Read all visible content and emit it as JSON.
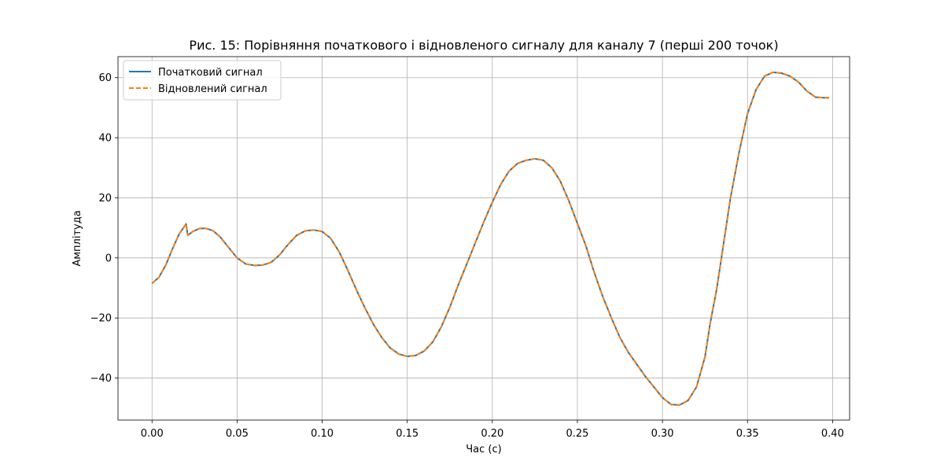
{
  "chart_data": {
    "type": "line",
    "title": "Рис. 15: Порівняння початкового і відновленого сигналу для каналу 7 (перші 200 точок)",
    "xlabel": "Час (с)",
    "ylabel": "Амплітуда",
    "xlim": [
      -0.02,
      0.41
    ],
    "ylim": [
      -54,
      67
    ],
    "xticks": [
      0.0,
      0.05,
      0.1,
      0.15,
      0.2,
      0.25,
      0.3,
      0.35,
      0.4
    ],
    "xtick_labels": [
      "0.00",
      "0.05",
      "0.10",
      "0.15",
      "0.20",
      "0.25",
      "0.30",
      "0.35",
      "0.40"
    ],
    "yticks": [
      -40,
      -20,
      0,
      20,
      40,
      60
    ],
    "ytick_labels": [
      "−40",
      "−20",
      "0",
      "20",
      "40",
      "60"
    ],
    "grid": true,
    "legend_position": "top-left",
    "x": [
      0.0,
      0.004,
      0.008,
      0.012,
      0.016,
      0.02,
      0.021,
      0.024,
      0.028,
      0.032,
      0.036,
      0.04,
      0.045,
      0.05,
      0.055,
      0.06,
      0.065,
      0.07,
      0.075,
      0.08,
      0.085,
      0.09,
      0.095,
      0.1,
      0.105,
      0.11,
      0.115,
      0.12,
      0.125,
      0.13,
      0.135,
      0.14,
      0.145,
      0.15,
      0.155,
      0.16,
      0.165,
      0.17,
      0.175,
      0.18,
      0.185,
      0.19,
      0.195,
      0.2,
      0.205,
      0.21,
      0.215,
      0.22,
      0.225,
      0.23,
      0.235,
      0.24,
      0.245,
      0.25,
      0.255,
      0.26,
      0.265,
      0.27,
      0.275,
      0.28,
      0.285,
      0.29,
      0.295,
      0.3,
      0.305,
      0.31,
      0.315,
      0.32,
      0.325,
      0.328,
      0.332,
      0.336,
      0.34,
      0.345,
      0.35,
      0.355,
      0.36,
      0.365,
      0.37,
      0.375,
      0.38,
      0.385,
      0.39,
      0.395,
      0.398
    ],
    "series": [
      {
        "name": "Початковий сигнал",
        "color": "#1f77b4",
        "dash": "solid",
        "values": [
          -8.5,
          -6.5,
          -2.5,
          3.0,
          8.0,
          11.3,
          7.5,
          8.8,
          9.8,
          9.8,
          9.0,
          7.0,
          3.5,
          0.0,
          -2.0,
          -2.5,
          -2.4,
          -1.5,
          1.0,
          4.5,
          7.5,
          9.0,
          9.3,
          8.8,
          6.5,
          2.0,
          -4.0,
          -10.5,
          -16.5,
          -22.0,
          -26.5,
          -30.0,
          -32.0,
          -32.8,
          -32.5,
          -31.0,
          -28.0,
          -23.0,
          -16.5,
          -9.0,
          -2.0,
          5.0,
          12.0,
          18.5,
          24.5,
          29.0,
          31.5,
          32.5,
          33.0,
          32.5,
          30.0,
          25.5,
          19.0,
          11.5,
          4.0,
          -5.0,
          -13.0,
          -20.0,
          -26.5,
          -31.5,
          -35.5,
          -39.5,
          -43.0,
          -46.5,
          -48.8,
          -49.0,
          -47.5,
          -43.0,
          -33.0,
          -22.0,
          -10.0,
          5.0,
          20.0,
          35.0,
          48.0,
          56.0,
          60.5,
          61.8,
          61.5,
          60.5,
          58.5,
          55.5,
          53.5,
          53.3,
          53.3
        ]
      },
      {
        "name": "Відновлений сигнал",
        "color": "#ff7f0e",
        "dash": "dashed",
        "values": [
          -8.5,
          -6.5,
          -2.5,
          3.0,
          8.0,
          11.3,
          7.5,
          8.8,
          9.8,
          9.8,
          9.0,
          7.0,
          3.5,
          0.0,
          -2.0,
          -2.5,
          -2.4,
          -1.5,
          1.0,
          4.5,
          7.5,
          9.0,
          9.3,
          8.8,
          6.5,
          2.0,
          -4.0,
          -10.5,
          -16.5,
          -22.0,
          -26.5,
          -30.0,
          -32.0,
          -32.8,
          -32.5,
          -31.0,
          -28.0,
          -23.0,
          -16.5,
          -9.0,
          -2.0,
          5.0,
          12.0,
          18.5,
          24.5,
          29.0,
          31.5,
          32.5,
          33.0,
          32.5,
          30.0,
          25.5,
          19.0,
          11.5,
          4.0,
          -5.0,
          -13.0,
          -20.0,
          -26.5,
          -31.5,
          -35.5,
          -39.5,
          -43.0,
          -46.5,
          -48.8,
          -49.0,
          -47.5,
          -43.0,
          -33.0,
          -22.0,
          -10.0,
          5.0,
          20.0,
          35.0,
          48.0,
          56.0,
          60.5,
          61.8,
          61.5,
          60.5,
          58.5,
          55.5,
          53.5,
          53.3,
          53.3
        ]
      }
    ]
  }
}
